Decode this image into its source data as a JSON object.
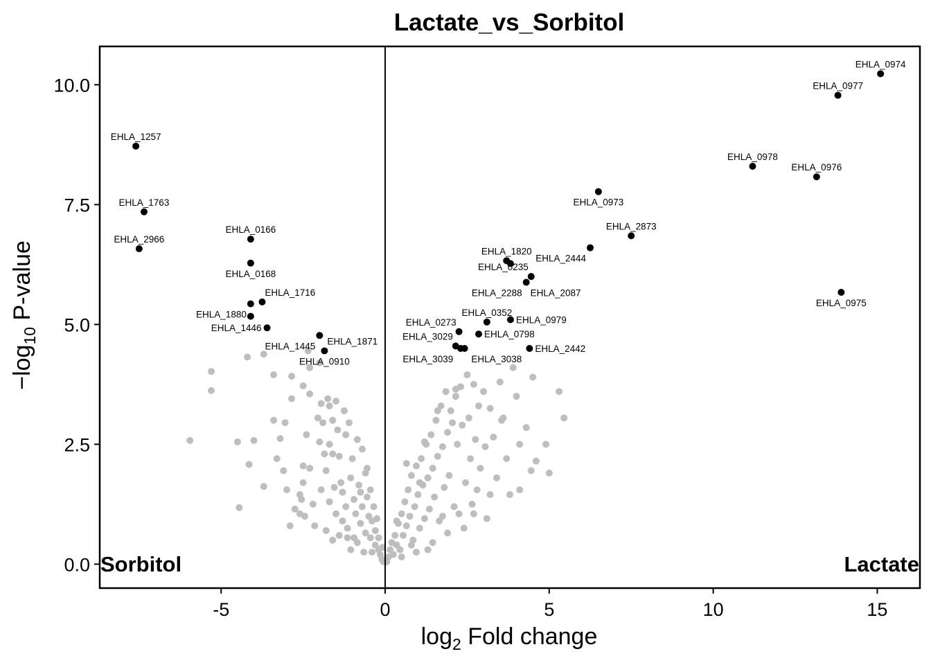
{
  "chart_data": {
    "type": "scatter",
    "title": "Lactate_vs_Sorbitol",
    "xlabel": {
      "prefix": "log",
      "sub": "2",
      "suffix": " Fold change"
    },
    "ylabel": {
      "prefix": "−log",
      "sub": "10",
      "suffix": " P-value"
    },
    "xlim": [
      -8.7,
      16.3
    ],
    "ylim": [
      -0.5,
      10.8
    ],
    "xticks": [
      -5,
      0,
      5,
      10,
      15
    ],
    "xtick_labels": [
      "-5",
      "0",
      "5",
      "10",
      "15"
    ],
    "yticks": [
      0,
      2.5,
      5,
      7.5,
      10
    ],
    "ytick_labels": [
      "0.0",
      "2.5",
      "5.0",
      "7.5",
      "10.0"
    ],
    "grid": false,
    "vline_x": 0,
    "corner_labels": {
      "left": "Sorbitol",
      "right": "Lactate"
    },
    "colors": {
      "significant": "#000000",
      "not_significant": "#BEBEBE"
    },
    "significant": [
      {
        "label": "EHLA_0974",
        "x": 15.1,
        "y": 10.23,
        "anchor": "above"
      },
      {
        "label": "EHLA_0977",
        "x": 13.8,
        "y": 9.78,
        "anchor": "above"
      },
      {
        "label": "EHLA_1257",
        "x": -7.6,
        "y": 8.72,
        "anchor": "above"
      },
      {
        "label": "EHLA_0978",
        "x": 11.2,
        "y": 8.3,
        "anchor": "above"
      },
      {
        "label": "EHLA_0976",
        "x": 13.15,
        "y": 8.08,
        "anchor": "above"
      },
      {
        "label": "EHLA_0973",
        "x": 6.5,
        "y": 7.77,
        "anchor": "below"
      },
      {
        "label": "EHLA_1763",
        "x": -7.35,
        "y": 7.35,
        "anchor": "above"
      },
      {
        "label": "EHLA_2873",
        "x": 7.5,
        "y": 6.85,
        "anchor": "above"
      },
      {
        "label": "EHLA_0166",
        "x": -4.1,
        "y": 6.78,
        "anchor": "above"
      },
      {
        "label": "EHLA_2444",
        "x": 6.25,
        "y": 6.6,
        "anchor": "belowleft"
      },
      {
        "label": "EHLA_2966",
        "x": -7.5,
        "y": 6.58,
        "anchor": "above"
      },
      {
        "label": "EHLA_1820",
        "x": 3.7,
        "y": 6.33,
        "anchor": "above"
      },
      {
        "label": "",
        "x": 3.82,
        "y": 6.27
      },
      {
        "label": "EHLA_0168",
        "x": -4.1,
        "y": 6.28,
        "anchor": "below"
      },
      {
        "label": "EHLA_0235",
        "x": 4.45,
        "y": 6.0,
        "anchor": "aboveleft"
      },
      {
        "label": "EHLA_2087",
        "x": 4.3,
        "y": 5.88,
        "anchor": "belowright"
      },
      {
        "label": "EHLA_2288",
        "x": 4.3,
        "y": 5.88,
        "anchor": "belowleft",
        "hidden_point": true
      },
      {
        "label": "EHLA_0975",
        "x": 13.9,
        "y": 5.67,
        "anchor": "below"
      },
      {
        "label": "EHLA_1716",
        "x": -3.75,
        "y": 5.47,
        "anchor": "aboveright"
      },
      {
        "label": "EHLA_1880",
        "x": -4.1,
        "y": 5.43,
        "anchor": "belowleft"
      },
      {
        "label": "EHLA_0352",
        "x": 3.1,
        "y": 5.05,
        "anchor": "above"
      },
      {
        "label": "EHLA_0979",
        "x": 3.82,
        "y": 5.1,
        "anchor": "right"
      },
      {
        "label": "",
        "x": -4.1,
        "y": 5.17
      },
      {
        "label": "EHLA_1446",
        "x": -3.6,
        "y": 4.93,
        "anchor": "left"
      },
      {
        "label": "EHLA_0273",
        "x": 2.25,
        "y": 4.85,
        "anchor": "aboveleft"
      },
      {
        "label": "EHLA_0798",
        "x": 2.85,
        "y": 4.8,
        "anchor": "right"
      },
      {
        "label": "EHLA_1445",
        "x": -2.0,
        "y": 4.77,
        "anchor": "belowleft"
      },
      {
        "label": "EHLA_1871",
        "x": -1.85,
        "y": 4.45,
        "anchor": "aboveright"
      },
      {
        "label": "EHLA_0910",
        "x": -1.85,
        "y": 4.45,
        "anchor": "below",
        "hidden_point": true
      },
      {
        "label": "EHLA_3029",
        "x": 2.15,
        "y": 4.55,
        "anchor": "aboveleft"
      },
      {
        "label": "",
        "x": 2.3,
        "y": 4.5
      },
      {
        "label": "",
        "x": 2.42,
        "y": 4.5
      },
      {
        "label": "EHLA_2442",
        "x": 4.4,
        "y": 4.5,
        "anchor": "right"
      },
      {
        "label": "EHLA_3039",
        "x": 2.2,
        "y": 4.5,
        "anchor": "belowleft",
        "hidden_point": true
      },
      {
        "label": "EHLA_3038",
        "x": 2.5,
        "y": 4.5,
        "anchor": "belowright",
        "hidden_point": true
      }
    ],
    "not_significant": [
      [
        -5.95,
        2.58
      ],
      [
        -5.3,
        4.02
      ],
      [
        -5.3,
        3.62
      ],
      [
        -4.5,
        2.55
      ],
      [
        -4.45,
        1.18
      ],
      [
        -4.2,
        4.32
      ],
      [
        -4.15,
        2.08
      ],
      [
        -4.0,
        2.58
      ],
      [
        -3.7,
        4.38
      ],
      [
        -3.7,
        1.62
      ],
      [
        -3.4,
        3.95
      ],
      [
        -3.4,
        3.0
      ],
      [
        -3.2,
        2.62
      ],
      [
        -3.3,
        2.2
      ],
      [
        -3.1,
        1.95
      ],
      [
        -3.05,
        2.95
      ],
      [
        -3.0,
        1.55
      ],
      [
        -2.9,
        0.8
      ],
      [
        -2.85,
        3.92
      ],
      [
        -2.85,
        3.45
      ],
      [
        -2.5,
        3.72
      ],
      [
        -2.4,
        2.7
      ],
      [
        -2.5,
        2.05
      ],
      [
        -2.5,
        1.7
      ],
      [
        -2.6,
        1.45
      ],
      [
        -2.55,
        1.35
      ],
      [
        -2.6,
        1.05
      ],
      [
        -2.35,
        4.45
      ],
      [
        -2.3,
        4.1
      ],
      [
        -2.3,
        3.55
      ],
      [
        -2.3,
        2.0
      ],
      [
        -2.2,
        1.25
      ],
      [
        -2.15,
        0.8
      ],
      [
        -2.05,
        3.05
      ],
      [
        -2.0,
        4.2
      ],
      [
        -2.0,
        2.55
      ],
      [
        -1.95,
        3.35
      ],
      [
        -1.9,
        2.95
      ],
      [
        -1.85,
        2.3
      ],
      [
        -1.8,
        1.95
      ],
      [
        -1.8,
        0.7
      ],
      [
        -1.75,
        3.45
      ],
      [
        -1.7,
        3.3
      ],
      [
        -1.7,
        2.5
      ],
      [
        -1.6,
        3.0
      ],
      [
        -1.6,
        2.3
      ],
      [
        -1.55,
        1.6
      ],
      [
        -1.5,
        3.4
      ],
      [
        -1.5,
        1.05
      ],
      [
        -1.45,
        2.8
      ],
      [
        -1.4,
        2.25
      ],
      [
        -1.35,
        1.7
      ],
      [
        -1.3,
        1.5
      ],
      [
        -1.3,
        0.9
      ],
      [
        -1.25,
        3.2
      ],
      [
        -1.2,
        2.7
      ],
      [
        -1.2,
        1.2
      ],
      [
        -1.1,
        2.95
      ],
      [
        -1.05,
        1.8
      ],
      [
        -1.0,
        2.2
      ],
      [
        -0.95,
        1.35
      ],
      [
        -0.9,
        1.05
      ],
      [
        -0.85,
        2.6
      ],
      [
        -0.8,
        1.65
      ],
      [
        -0.75,
        0.85
      ],
      [
        -0.7,
        2.4
      ],
      [
        -0.7,
        1.2
      ],
      [
        -0.6,
        1.9
      ],
      [
        -0.6,
        0.65
      ],
      [
        -0.55,
        1.4
      ],
      [
        -0.5,
        1.0
      ],
      [
        -0.45,
        1.55
      ],
      [
        -0.45,
        0.55
      ],
      [
        -0.4,
        0.9
      ],
      [
        -0.35,
        1.2
      ],
      [
        -0.3,
        0.4
      ],
      [
        -0.3,
        0.7
      ],
      [
        -0.25,
        0.95
      ],
      [
        -0.2,
        0.3
      ],
      [
        -0.2,
        0.55
      ],
      [
        -0.15,
        0.2
      ],
      [
        -0.1,
        0.1
      ],
      [
        -0.08,
        0.35
      ],
      [
        -0.05,
        0.05
      ],
      [
        -1.05,
        0.3
      ],
      [
        -0.85,
        0.45
      ],
      [
        -0.65,
        0.25
      ],
      [
        -1.4,
        0.6
      ],
      [
        -1.6,
        0.5
      ],
      [
        -1.15,
        0.75
      ],
      [
        -0.95,
        0.55
      ],
      [
        -0.75,
        1.5
      ],
      [
        -0.55,
        2.0
      ],
      [
        -1.7,
        1.3
      ],
      [
        -2.45,
        1.0
      ],
      [
        -1.95,
        1.55
      ],
      [
        -2.75,
        1.15
      ],
      [
        -1.15,
        0.55
      ],
      [
        -0.4,
        0.25
      ],
      [
        0.05,
        0.05
      ],
      [
        0.1,
        0.15
      ],
      [
        0.15,
        0.3
      ],
      [
        0.2,
        0.45
      ],
      [
        0.25,
        0.2
      ],
      [
        0.3,
        0.6
      ],
      [
        0.35,
        0.4
      ],
      [
        0.4,
        0.85
      ],
      [
        0.45,
        0.3
      ],
      [
        0.5,
        1.05
      ],
      [
        0.55,
        0.6
      ],
      [
        0.6,
        1.3
      ],
      [
        0.65,
        0.8
      ],
      [
        0.7,
        1.55
      ],
      [
        0.75,
        1.0
      ],
      [
        0.8,
        1.85
      ],
      [
        0.85,
        0.5
      ],
      [
        0.9,
        1.2
      ],
      [
        0.95,
        2.05
      ],
      [
        1.0,
        1.45
      ],
      [
        1.05,
        0.75
      ],
      [
        1.1,
        2.2
      ],
      [
        1.15,
        1.65
      ],
      [
        1.2,
        0.95
      ],
      [
        1.25,
        2.5
      ],
      [
        1.3,
        1.8
      ],
      [
        1.35,
        1.15
      ],
      [
        1.4,
        2.7
      ],
      [
        1.45,
        2.0
      ],
      [
        1.5,
        1.4
      ],
      [
        1.55,
        3.0
      ],
      [
        1.6,
        2.25
      ],
      [
        1.65,
        0.9
      ],
      [
        1.7,
        3.3
      ],
      [
        1.75,
        2.45
      ],
      [
        1.8,
        1.6
      ],
      [
        1.85,
        3.6
      ],
      [
        1.9,
        2.75
      ],
      [
        1.95,
        1.85
      ],
      [
        2.0,
        3.2
      ],
      [
        2.05,
        2.95
      ],
      [
        2.1,
        1.2
      ],
      [
        2.15,
        3.5
      ],
      [
        2.2,
        2.5
      ],
      [
        2.25,
        1.05
      ],
      [
        2.3,
        3.7
      ],
      [
        2.35,
        2.9
      ],
      [
        2.45,
        1.7
      ],
      [
        2.5,
        3.95
      ],
      [
        2.55,
        3.05
      ],
      [
        2.6,
        2.2
      ],
      [
        2.65,
        1.25
      ],
      [
        2.7,
        3.75
      ],
      [
        2.75,
        2.6
      ],
      [
        2.8,
        1.55
      ],
      [
        2.85,
        3.3
      ],
      [
        2.9,
        2.0
      ],
      [
        3.0,
        3.6
      ],
      [
        3.05,
        2.45
      ],
      [
        3.1,
        0.95
      ],
      [
        3.2,
        3.25
      ],
      [
        3.3,
        2.65
      ],
      [
        3.4,
        1.8
      ],
      [
        3.5,
        3.8
      ],
      [
        3.6,
        3.05
      ],
      [
        3.7,
        2.2
      ],
      [
        3.8,
        1.45
      ],
      [
        3.9,
        4.1
      ],
      [
        4.0,
        3.5
      ],
      [
        4.1,
        2.5
      ],
      [
        4.3,
        2.85
      ],
      [
        4.5,
        3.9
      ],
      [
        4.6,
        2.15
      ],
      [
        4.9,
        2.5
      ],
      [
        5.0,
        1.9
      ],
      [
        5.3,
        3.6
      ],
      [
        5.45,
        3.05
      ],
      [
        1.45,
        0.45
      ],
      [
        1.75,
        1.0
      ],
      [
        1.05,
        1.7
      ],
      [
        0.65,
        2.1
      ],
      [
        0.8,
        0.4
      ],
      [
        2.4,
        0.75
      ],
      [
        1.2,
        2.55
      ],
      [
        0.95,
        0.25
      ],
      [
        1.9,
        0.65
      ],
      [
        2.7,
        1.05
      ],
      [
        3.2,
        1.45
      ],
      [
        4.1,
        1.55
      ],
      [
        3.55,
        3.0
      ],
      [
        4.45,
        1.95
      ],
      [
        1.6,
        3.2
      ],
      [
        2.15,
        3.65
      ],
      [
        0.5,
        0.15
      ],
      [
        0.35,
        0.9
      ],
      [
        1.3,
        0.3
      ]
    ]
  }
}
